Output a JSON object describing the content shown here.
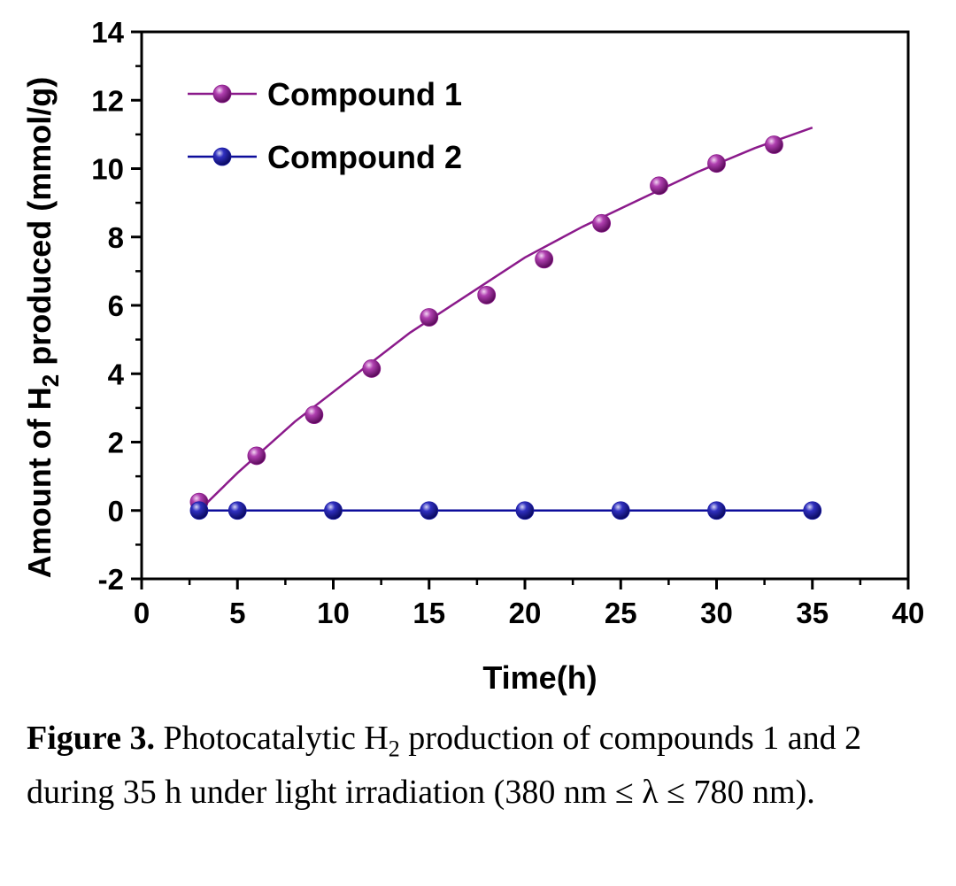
{
  "chart_data": {
    "type": "line",
    "xlabel": "Time(h)",
    "ylabel": {
      "before": "Amount of H",
      "sub": "2",
      "after": " produced (mmol/g)"
    },
    "xlim": [
      0,
      40
    ],
    "ylim": [
      -2,
      14
    ],
    "xticks": [
      0,
      5,
      10,
      15,
      20,
      25,
      30,
      35,
      40
    ],
    "yticks": [
      -2,
      0,
      2,
      4,
      6,
      8,
      10,
      12,
      14
    ],
    "grid": false,
    "legend_position": "top-left",
    "series": [
      {
        "name": "Compound 1",
        "color": "#8b1a8b",
        "marker_color": "#8b1a8b",
        "x": [
          3,
          6,
          9,
          12,
          15,
          18,
          21,
          24,
          27,
          30,
          33
        ],
        "y": [
          0.25,
          1.6,
          2.8,
          4.15,
          5.65,
          6.3,
          7.35,
          8.4,
          9.5,
          10.15,
          10.7
        ],
        "fit_curve": {
          "x": [
            3,
            5,
            8,
            11,
            14,
            17,
            20,
            23,
            26,
            29,
            32,
            35
          ],
          "y": [
            0.0,
            1.1,
            2.6,
            3.9,
            5.2,
            6.3,
            7.4,
            8.3,
            9.1,
            9.9,
            10.6,
            11.2
          ]
        }
      },
      {
        "name": "Compound 2",
        "color": "#0d0d9b",
        "marker_color": "#1a1aa6",
        "x": [
          3,
          5,
          10,
          15,
          20,
          25,
          30,
          35
        ],
        "y": [
          0,
          0,
          0,
          0,
          0,
          0,
          0,
          0
        ]
      }
    ]
  },
  "caption": {
    "label": "Figure 3.",
    "text_1": " Photocatalytic H",
    "sub": "2",
    "text_2": " production of compounds 1 and 2 during 35 h under light irradiation (380 nm ≤ λ ≤ 780 nm)."
  }
}
